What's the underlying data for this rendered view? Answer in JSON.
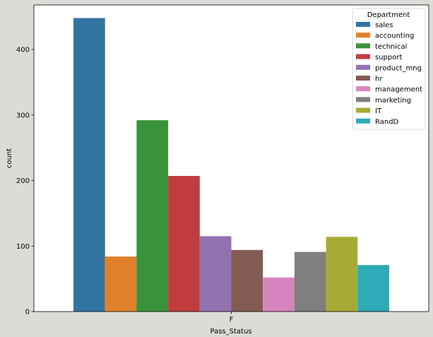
{
  "chart_data": {
    "type": "bar",
    "title": "",
    "xlabel": "Pass_Status",
    "ylabel": "count",
    "categories": [
      "F"
    ],
    "ylim": [
      0,
      468
    ],
    "yticks": [
      0,
      100,
      200,
      300,
      400
    ],
    "grid": false,
    "legend": {
      "title": "Department",
      "placement": "top-right"
    },
    "series": [
      {
        "name": "sales",
        "values": [
          448
        ],
        "color": "#3274a1"
      },
      {
        "name": "accounting",
        "values": [
          84
        ],
        "color": "#e1812c"
      },
      {
        "name": "technical",
        "values": [
          292
        ],
        "color": "#3a923a"
      },
      {
        "name": "support",
        "values": [
          207
        ],
        "color": "#c03d3e"
      },
      {
        "name": "product_mng",
        "values": [
          115
        ],
        "color": "#9372b2"
      },
      {
        "name": "hr",
        "values": [
          94
        ],
        "color": "#845b53"
      },
      {
        "name": "management",
        "values": [
          52
        ],
        "color": "#d684bd"
      },
      {
        "name": "marketing",
        "values": [
          91
        ],
        "color": "#7f7f7f"
      },
      {
        "name": "IT",
        "values": [
          114
        ],
        "color": "#a9aa35"
      },
      {
        "name": "RandD",
        "values": [
          71
        ],
        "color": "#2eabb8"
      }
    ]
  }
}
